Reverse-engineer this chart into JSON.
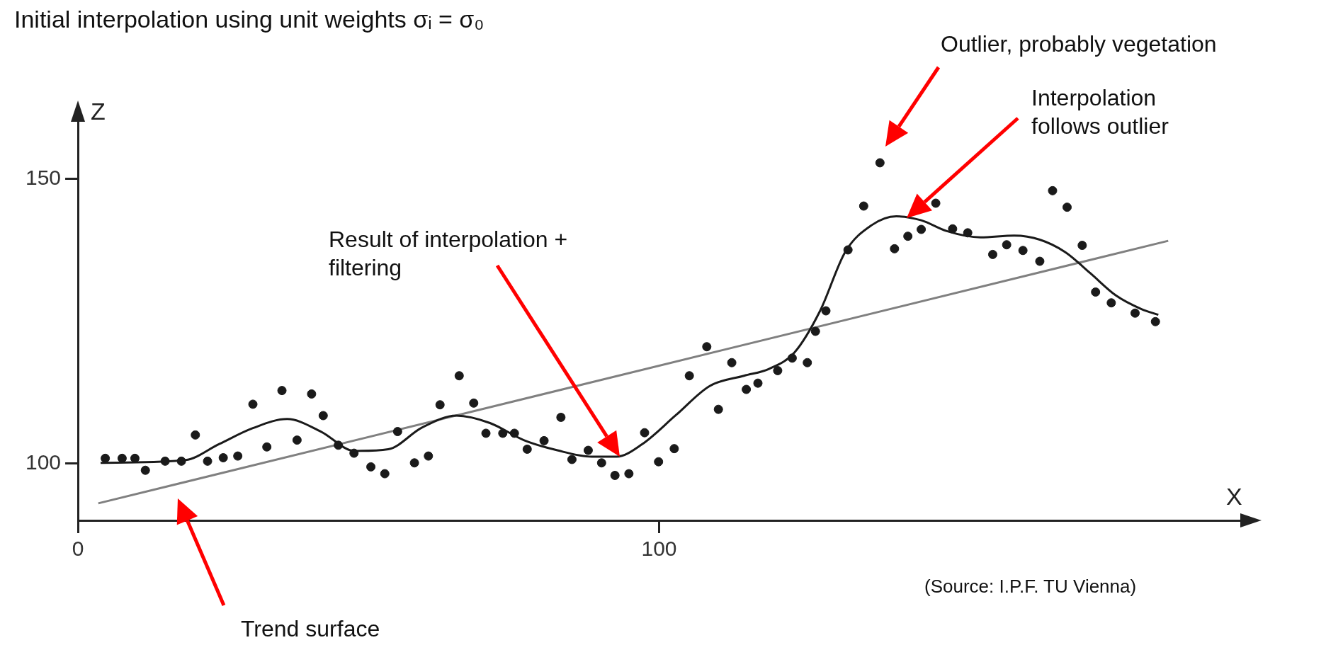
{
  "chart_data": {
    "type": "scatter",
    "title": "Initial interpolation using unit weights σᵢ = σ₀",
    "xlabel": "X",
    "ylabel": "Z",
    "xlim": [
      0,
      200
    ],
    "ylim": [
      90,
      160
    ],
    "xticks": [
      0,
      100
    ],
    "yticks": [
      100,
      150
    ],
    "grid": false,
    "legend": false,
    "series": [
      {
        "type": "scatter",
        "marker": "circle",
        "color": "#1a1a1a",
        "x": [
          4.7,
          7.6,
          9.8,
          11.6,
          15.0,
          17.8,
          20.2,
          22.3,
          25.0,
          27.5,
          30.1,
          32.5,
          35.1,
          37.7,
          40.2,
          42.2,
          44.8,
          47.5,
          50.4,
          52.8,
          55.0,
          57.9,
          60.3,
          62.3,
          65.6,
          68.1,
          70.2,
          73.1,
          75.1,
          77.3,
          80.2,
          83.1,
          85.0,
          87.8,
          90.1,
          92.4,
          94.8,
          97.5,
          99.9,
          102.6,
          105.2,
          108.2,
          110.2,
          112.5,
          115.0,
          117.0,
          120.4,
          122.9,
          125.5,
          126.9,
          128.7,
          132.5,
          135.2,
          138.0,
          140.5,
          142.8,
          145.1,
          147.6,
          150.5,
          153.1,
          157.4,
          159.8,
          162.6,
          165.5,
          167.7,
          170.2,
          172.8,
          175.1,
          177.8,
          181.9,
          185.4
        ],
        "values": [
          100.9,
          100.9,
          100.9,
          98.8,
          100.4,
          100.4,
          105.0,
          100.4,
          101.0,
          101.3,
          110.4,
          102.9,
          112.8,
          104.1,
          112.2,
          108.4,
          103.2,
          101.8,
          99.4,
          98.2,
          105.6,
          100.1,
          101.3,
          110.3,
          115.4,
          110.6,
          105.3,
          105.3,
          105.3,
          102.5,
          104.0,
          108.1,
          100.7,
          102.3,
          100.1,
          97.9,
          98.2,
          105.4,
          100.3,
          102.6,
          115.4,
          120.5,
          109.5,
          117.7,
          113.0,
          114.1,
          116.3,
          118.5,
          117.7,
          123.2,
          126.8,
          137.5,
          145.2,
          152.8,
          137.7,
          139.9,
          141.1,
          145.7,
          141.2,
          140.5,
          136.7,
          138.4,
          137.4,
          135.5,
          147.9,
          145.0,
          138.3,
          130.1,
          128.2,
          126.4,
          124.9
        ]
      },
      {
        "type": "line",
        "marker": "none",
        "color": "#1a1a1a",
        "x": [
          3.9,
          18.5,
          24.3,
          30.1,
          36.0,
          41.8,
          47.6,
          53.4,
          59.2,
          65.1,
          70.9,
          76.7,
          82.5,
          88.4,
          92.7,
          97.1,
          102.9,
          108.7,
          114.6,
          118.9,
          123.3,
          127.7,
          132.0,
          136.5,
          140.8,
          145.1,
          149.5,
          155.3,
          161.1,
          165.5,
          169.9,
          174.2,
          178.6,
          183.0,
          185.9
        ],
        "values": [
          100.1,
          100.6,
          103.4,
          106.2,
          107.8,
          105.6,
          102.2,
          102.5,
          106.3,
          108.4,
          107.1,
          104.1,
          102.3,
          101.2,
          101.2,
          103.4,
          108.5,
          113.6,
          115.4,
          116.6,
          119.5,
          126.8,
          137.1,
          141.8,
          143.4,
          142.7,
          140.8,
          139.7,
          140.0,
          139.3,
          137.1,
          133.4,
          129.5,
          127.1,
          126.1
        ]
      },
      {
        "type": "line",
        "marker": "none",
        "color": "#808080",
        "x": [
          3.5,
          187.6
        ],
        "values": [
          93.0,
          139.1
        ]
      }
    ],
    "annotations": [
      "Outlier, probably vegetation",
      "Interpolation follows outlier",
      "Result of interpolation + filtering",
      "Trend surface",
      "(Source: I.P.F. TU Vienna)"
    ]
  }
}
